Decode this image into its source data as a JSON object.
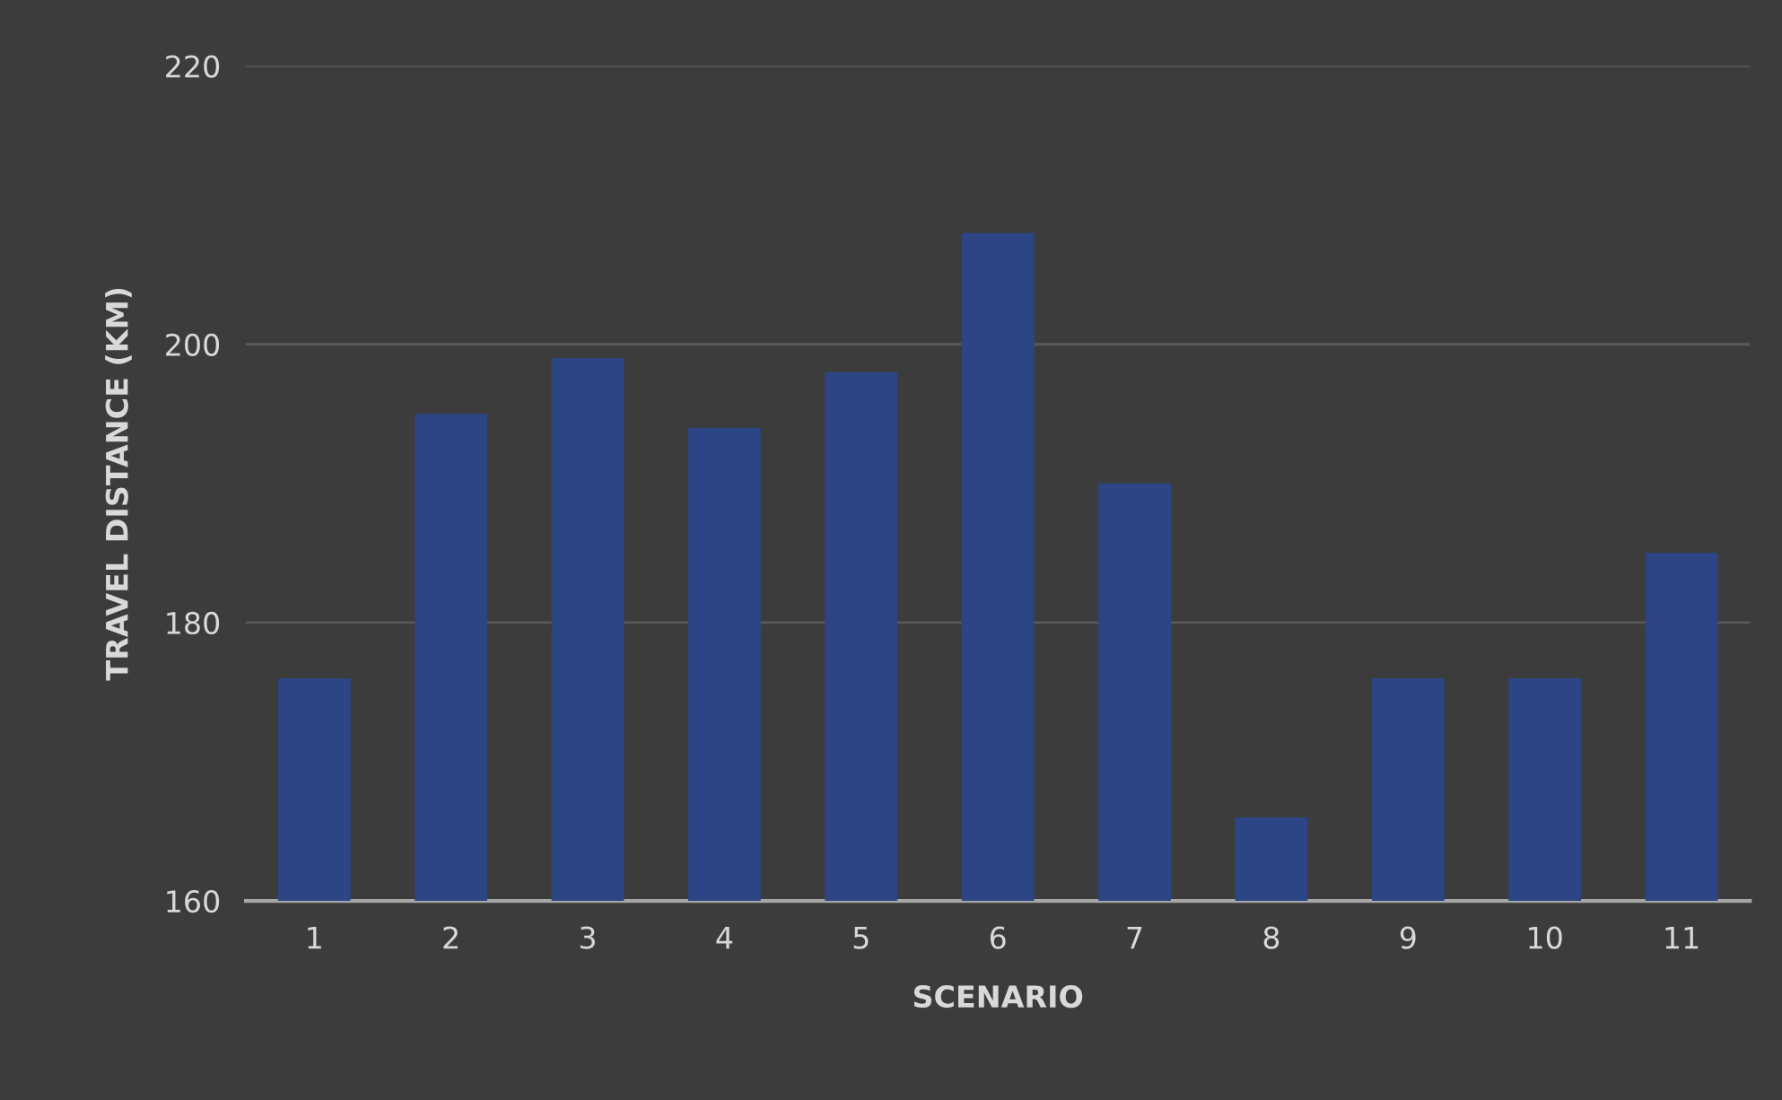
{
  "chart_data": {
    "type": "bar",
    "xlabel": "SCENARIO",
    "ylabel": "TRAVEL DISTANCE (KM)",
    "categories": [
      "1",
      "2",
      "3",
      "4",
      "5",
      "6",
      "7",
      "8",
      "9",
      "10",
      "11"
    ],
    "values": [
      176,
      195,
      199,
      194,
      198,
      208,
      190,
      166,
      176,
      176,
      185
    ],
    "color": "#2b4585",
    "ylim": [
      160,
      220
    ],
    "yticks": [
      160,
      180,
      200,
      220
    ],
    "grid": "y"
  }
}
